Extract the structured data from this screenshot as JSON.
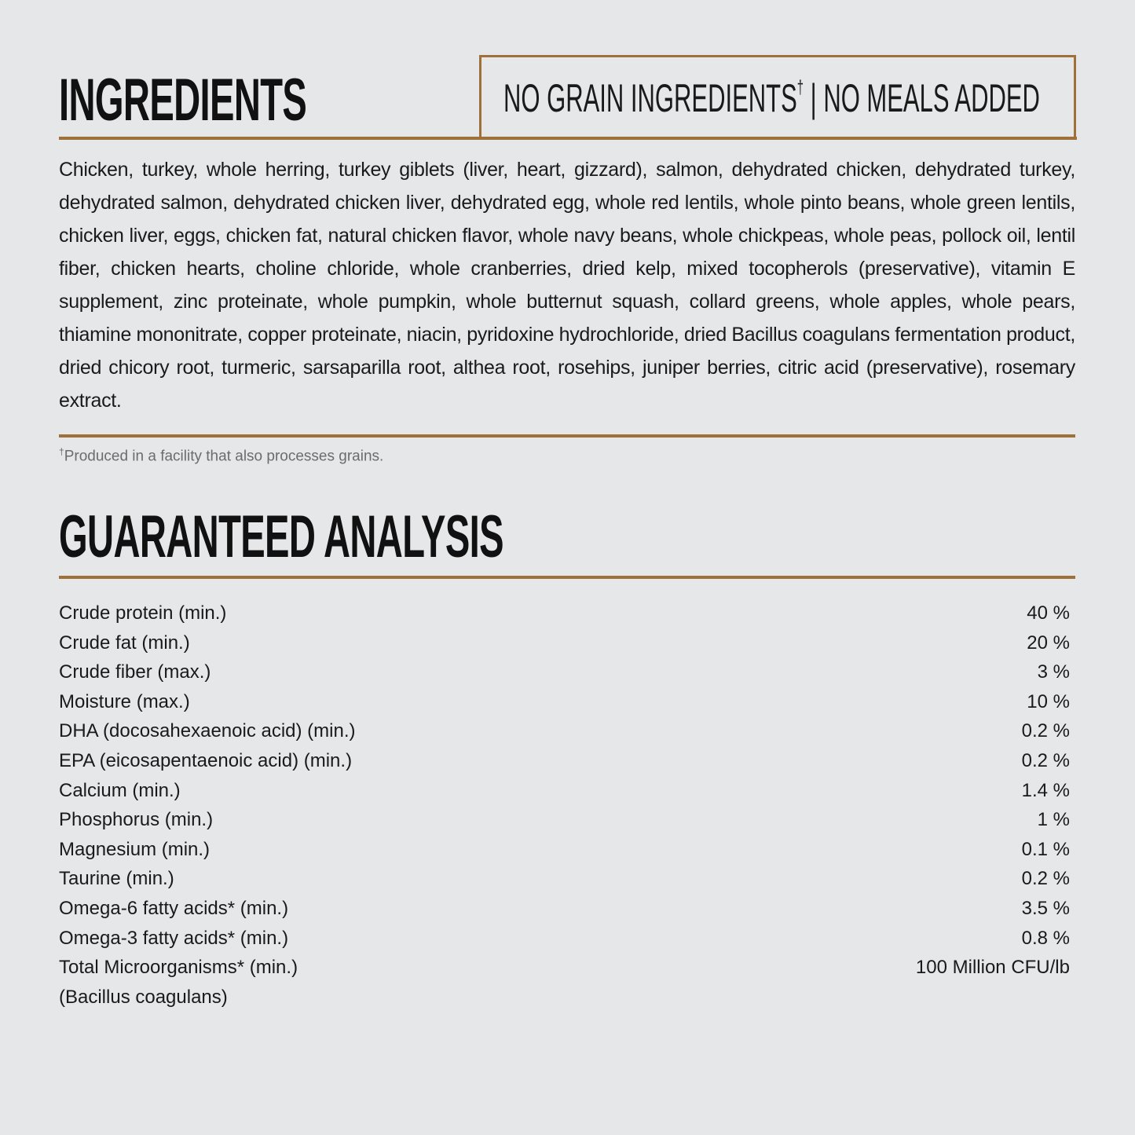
{
  "ingredients": {
    "title": "INGREDIENTS",
    "badge": "NO GRAIN INGREDIENTS",
    "badge_mark": "†",
    "badge_rest": " | NO MEALS ADDED",
    "text": "Chicken, turkey, whole herring, turkey giblets (liver, heart, gizzard), salmon, dehydrated chicken, dehydrated turkey, dehydrated salmon, dehydrated chicken liver, dehydrated egg, whole red lentils, whole pinto beans, whole green lentils, chicken liver, eggs, chicken fat, natural chicken flavor, whole navy beans, whole chickpeas, whole peas, pollock oil, lentil fiber, chicken hearts, choline chloride, whole cranberries, dried kelp, mixed tocopherols (preservative), vitamin E supplement, zinc proteinate, whole pumpkin, whole butternut squash, collard greens, whole apples, whole pears, thiamine mononitrate, copper proteinate, niacin, pyridoxine hydrochloride, dried Bacillus coagulans fermentation product, dried chicory root, turmeric, sarsaparilla root, althea root, rosehips, juniper berries, citric acid (preservative), rosemary extract.",
    "footnote_mark": "†",
    "footnote": "Produced in a facility that also processes grains."
  },
  "analysis": {
    "title": "GUARANTEED ANALYSIS",
    "rows": [
      {
        "label": "Crude protein (min.)",
        "value": "40 %"
      },
      {
        "label": "Crude fat (min.)",
        "value": "20 %"
      },
      {
        "label": "Crude fiber (max.)",
        "value": "3 %"
      },
      {
        "label": "Moisture (max.)",
        "value": "10 %"
      },
      {
        "label": "DHA (docosahexaenoic acid) (min.)",
        "value": "0.2 %"
      },
      {
        "label": "EPA (eicosapentaenoic acid) (min.)",
        "value": "0.2 %"
      },
      {
        "label": "Calcium (min.)",
        "value": "1.4 %"
      },
      {
        "label": "Phosphorus (min.)",
        "value": "1 %"
      },
      {
        "label": "Magnesium (min.)",
        "value": "0.1 %"
      },
      {
        "label": "Taurine (min.)",
        "value": "0.2 %"
      },
      {
        "label": "Omega-6 fatty acids* (min.)",
        "value": "3.5 %"
      },
      {
        "label": "Omega-3 fatty acids* (min.)",
        "value": "0.8 %"
      },
      {
        "label": "Total Microorganisms* (min.)",
        "value": "100 Million CFU/lb"
      },
      {
        "label": "(Bacillus coagulans)",
        "value": ""
      }
    ]
  },
  "colors": {
    "accent": "#a0703a",
    "background": "#e6e7e9"
  }
}
